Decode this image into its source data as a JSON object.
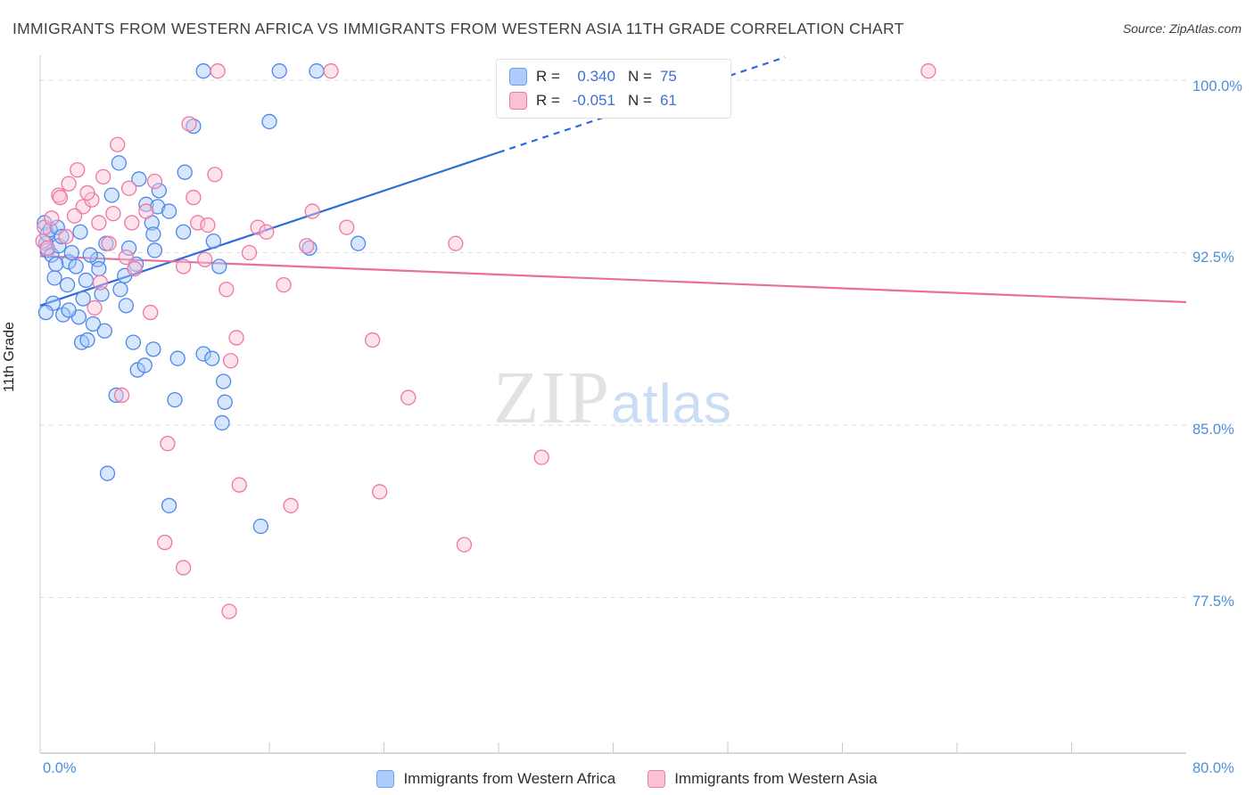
{
  "header": {
    "title": "IMMIGRANTS FROM WESTERN AFRICA VS IMMIGRANTS FROM WESTERN ASIA 11TH GRADE CORRELATION CHART",
    "source": "Source: ZipAtlas.com"
  },
  "axes": {
    "y_axis_title": "11th Grade",
    "y_tick_labels": [
      "100.0%",
      "92.5%",
      "85.0%",
      "77.5%"
    ],
    "x_left_label": "0.0%",
    "x_right_label": "80.0%"
  },
  "legend_box": {
    "rows": [
      {
        "r_label": "R =",
        "r_value": "0.340",
        "n_label": "N =",
        "n_value": "75"
      },
      {
        "r_label": "R =",
        "r_value": "-0.051",
        "n_label": "N =",
        "n_value": "61"
      }
    ]
  },
  "watermark": {
    "zip": "ZIP",
    "atlas": "atlas"
  },
  "legend": [
    {
      "label": "Immigrants from Western Africa"
    },
    {
      "label": "Immigrants from Western Asia"
    }
  ],
  "colors": {
    "blue_stroke": "#4e86ec",
    "blue_fill": "#a4c8f8",
    "blue_line": "#2f6be0",
    "pink_stroke": "#ef77a3",
    "pink_fill": "#f9c2d4",
    "pink_line": "#e8709a",
    "tick_label_blue": "#4a90d9"
  },
  "chart_data": {
    "type": "scatter",
    "title": "IMMIGRANTS FROM WESTERN AFRICA VS IMMIGRANTS FROM WESTERN ASIA 11TH GRADE CORRELATION CHART",
    "xlabel": "",
    "ylabel": "11th Grade",
    "xlim": [
      0,
      80
    ],
    "ylim": [
      70.6,
      101.4
    ],
    "grid": "dashed-horizontal",
    "legend_position": "top-center",
    "y_ticks": [
      {
        "value": 100.0,
        "label": "100.0%"
      },
      {
        "value": 92.5,
        "label": "92.5%"
      },
      {
        "value": 85.0,
        "label": "85.0%"
      },
      {
        "value": 77.5,
        "label": "77.5%"
      }
    ],
    "x_minor_tick_step": 8,
    "series": [
      {
        "name": "Immigrants from Western Africa",
        "R": 0.34,
        "N": 75,
        "color": "#4e86ec",
        "fill": "#a4c8f8",
        "line": "#2f6be0",
        "trend": {
          "solid": [
            [
              0,
              90.2
            ],
            [
              32,
              96.86
            ]
          ],
          "dashed": [
            [
              32,
              96.86
            ],
            [
              52,
              101.0
            ]
          ]
        },
        "points": [
          [
            0.3,
            93.8
          ],
          [
            0.4,
            92.9
          ],
          [
            0.5,
            93.3
          ],
          [
            0.5,
            92.6
          ],
          [
            0.7,
            93.5
          ],
          [
            0.8,
            92.4
          ],
          [
            0.9,
            90.3
          ],
          [
            1.0,
            91.4
          ],
          [
            1.2,
            93.6
          ],
          [
            1.3,
            92.8
          ],
          [
            1.5,
            93.2
          ],
          [
            1.9,
            91.1
          ],
          [
            2.0,
            92.1
          ],
          [
            2.2,
            92.5
          ],
          [
            2.8,
            93.4
          ],
          [
            2.7,
            89.7
          ],
          [
            2.9,
            88.6
          ],
          [
            3.2,
            91.3
          ],
          [
            3.3,
            88.7
          ],
          [
            3.7,
            89.4
          ],
          [
            4.0,
            92.2
          ],
          [
            4.3,
            90.7
          ],
          [
            4.5,
            89.1
          ],
          [
            4.6,
            92.9
          ],
          [
            4.7,
            82.9
          ],
          [
            5.0,
            95.0
          ],
          [
            5.3,
            86.3
          ],
          [
            5.5,
            96.4
          ],
          [
            5.6,
            90.9
          ],
          [
            6.2,
            92.7
          ],
          [
            6.5,
            88.6
          ],
          [
            6.7,
            92.0
          ],
          [
            6.8,
            87.4
          ],
          [
            6.9,
            95.7
          ],
          [
            7.3,
            87.6
          ],
          [
            7.4,
            94.6
          ],
          [
            7.8,
            93.8
          ],
          [
            7.9,
            93.3
          ],
          [
            7.9,
            88.3
          ],
          [
            8.0,
            92.6
          ],
          [
            8.3,
            95.2
          ],
          [
            8.2,
            94.5
          ],
          [
            9.0,
            94.3
          ],
          [
            9.0,
            81.5
          ],
          [
            9.4,
            86.1
          ],
          [
            9.6,
            87.9
          ],
          [
            10.0,
            93.4
          ],
          [
            10.1,
            96.0
          ],
          [
            10.7,
            98.0
          ],
          [
            11.4,
            100.4
          ],
          [
            11.4,
            88.1
          ],
          [
            12.0,
            87.9
          ],
          [
            12.1,
            93.0
          ],
          [
            12.5,
            91.9
          ],
          [
            12.7,
            85.1
          ],
          [
            12.8,
            86.9
          ],
          [
            12.9,
            86.0
          ],
          [
            15.4,
            80.6
          ],
          [
            16.0,
            98.2
          ],
          [
            16.7,
            100.4
          ],
          [
            18.8,
            92.7
          ],
          [
            19.3,
            100.4
          ],
          [
            22.2,
            92.9
          ],
          [
            33.4,
            100.3
          ],
          [
            35.0,
            100.3
          ],
          [
            0.4,
            89.9
          ],
          [
            1.6,
            89.8
          ],
          [
            2.0,
            90.0
          ],
          [
            3.0,
            90.5
          ],
          [
            5.9,
            91.5
          ],
          [
            6.0,
            90.2
          ],
          [
            4.1,
            91.8
          ],
          [
            3.5,
            92.4
          ],
          [
            2.5,
            91.9
          ],
          [
            1.1,
            92.0
          ]
        ]
      },
      {
        "name": "Immigrants from Western Asia",
        "R": -0.051,
        "N": 61,
        "color": "#ef77a3",
        "fill": "#f9c2d4",
        "line": "#e8709a",
        "trend": {
          "solid": [
            [
              0,
              92.35
            ],
            [
              80,
              90.35
            ]
          ]
        },
        "points": [
          [
            0.2,
            93.0
          ],
          [
            0.3,
            93.6
          ],
          [
            0.8,
            94.0
          ],
          [
            1.3,
            95.0
          ],
          [
            1.4,
            94.9
          ],
          [
            2.0,
            95.5
          ],
          [
            2.6,
            96.1
          ],
          [
            3.0,
            94.5
          ],
          [
            3.6,
            94.8
          ],
          [
            3.8,
            90.1
          ],
          [
            4.1,
            93.8
          ],
          [
            4.2,
            91.2
          ],
          [
            4.4,
            95.8
          ],
          [
            5.1,
            94.2
          ],
          [
            5.4,
            97.2
          ],
          [
            5.7,
            86.3
          ],
          [
            6.2,
            95.3
          ],
          [
            6.4,
            93.8
          ],
          [
            6.6,
            91.8
          ],
          [
            7.4,
            94.3
          ],
          [
            7.7,
            89.9
          ],
          [
            8.0,
            95.6
          ],
          [
            8.7,
            79.9
          ],
          [
            8.9,
            84.2
          ],
          [
            10.0,
            91.9
          ],
          [
            10.0,
            78.8
          ],
          [
            10.4,
            98.1
          ],
          [
            10.7,
            94.9
          ],
          [
            11.0,
            93.8
          ],
          [
            11.5,
            92.2
          ],
          [
            11.7,
            93.7
          ],
          [
            12.2,
            95.9
          ],
          [
            12.4,
            100.4
          ],
          [
            13.0,
            90.9
          ],
          [
            13.2,
            76.9
          ],
          [
            13.3,
            87.8
          ],
          [
            13.7,
            88.8
          ],
          [
            13.9,
            82.4
          ],
          [
            14.6,
            92.5
          ],
          [
            15.2,
            93.6
          ],
          [
            15.8,
            93.4
          ],
          [
            17.0,
            91.1
          ],
          [
            17.5,
            81.5
          ],
          [
            18.6,
            92.8
          ],
          [
            19.0,
            94.3
          ],
          [
            20.3,
            100.4
          ],
          [
            21.4,
            93.6
          ],
          [
            23.2,
            88.7
          ],
          [
            23.7,
            82.1
          ],
          [
            25.7,
            86.2
          ],
          [
            29.0,
            92.9
          ],
          [
            29.6,
            79.8
          ],
          [
            35.0,
            83.6
          ],
          [
            42.0,
            100.3
          ],
          [
            62.0,
            100.4
          ],
          [
            0.5,
            92.7
          ],
          [
            1.8,
            93.2
          ],
          [
            2.4,
            94.1
          ],
          [
            3.3,
            95.1
          ],
          [
            4.8,
            92.9
          ],
          [
            6.0,
            92.3
          ]
        ]
      }
    ]
  }
}
